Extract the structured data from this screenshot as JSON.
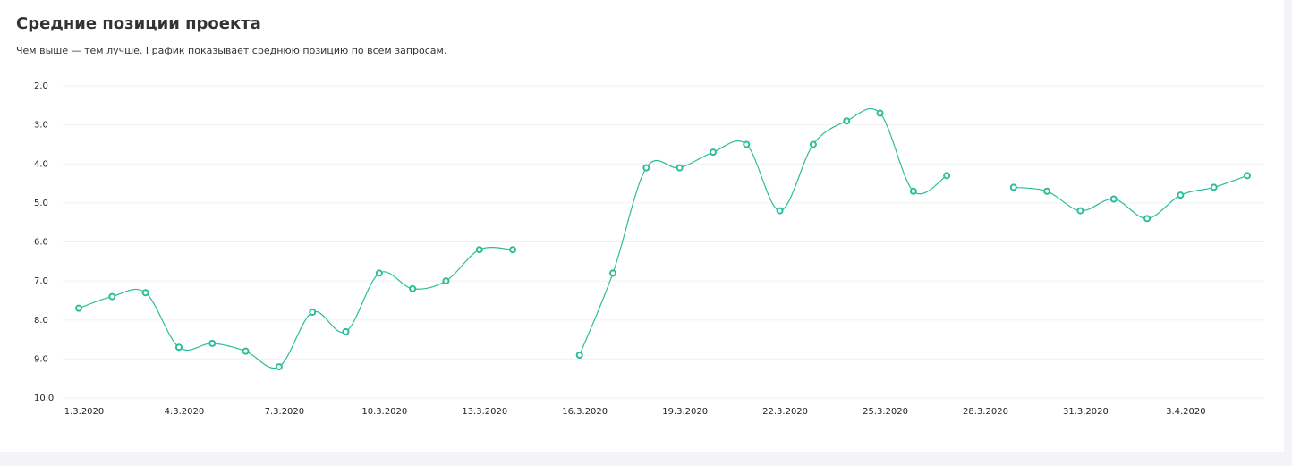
{
  "chart_data": {
    "type": "line",
    "title": "Средние позиции проекта",
    "subtitle": "Чем выше — тем лучше. График показывает среднюю позицию по всем запросам.",
    "categories": [
      "1.3.2020",
      null,
      null,
      "4.3.2020",
      null,
      null,
      "7.3.2020",
      null,
      null,
      "10.3.2020",
      null,
      null,
      "13.3.2020",
      null,
      null,
      "16.3.2020",
      null,
      null,
      "19.3.2020",
      null,
      null,
      "22.3.2020",
      null,
      null,
      "25.3.2020",
      null,
      null,
      "28.3.2020",
      null,
      null,
      "31.3.2020",
      null,
      null,
      "3.4.2020",
      null,
      null
    ],
    "series": [
      {
        "color": "#2bbd9a",
        "values": [
          7.7,
          7.4,
          7.3,
          8.7,
          8.6,
          8.8,
          9.2,
          7.8,
          8.3,
          6.8,
          7.2,
          7.0,
          6.2,
          6.2,
          null,
          8.9,
          6.8,
          4.1,
          4.1,
          3.7,
          3.5,
          5.2,
          3.5,
          2.9,
          2.7,
          4.7,
          4.3,
          null,
          4.6,
          4.7,
          5.2,
          4.9,
          5.4,
          4.8,
          4.6,
          4.3
        ]
      }
    ],
    "ylim": [
      10,
      2
    ],
    "yticks": [
      {
        "value": 2,
        "label": "2.0"
      },
      {
        "value": 3,
        "label": "3.0"
      },
      {
        "value": 4,
        "label": "4.0"
      },
      {
        "value": 5,
        "label": "5.0"
      },
      {
        "value": 6,
        "label": "6.0"
      },
      {
        "value": 7,
        "label": "7.0"
      },
      {
        "value": 8,
        "label": "8.0"
      },
      {
        "value": 9,
        "label": "9.0"
      },
      {
        "value": 10,
        "label": "10.0"
      }
    ],
    "grid": true
  }
}
